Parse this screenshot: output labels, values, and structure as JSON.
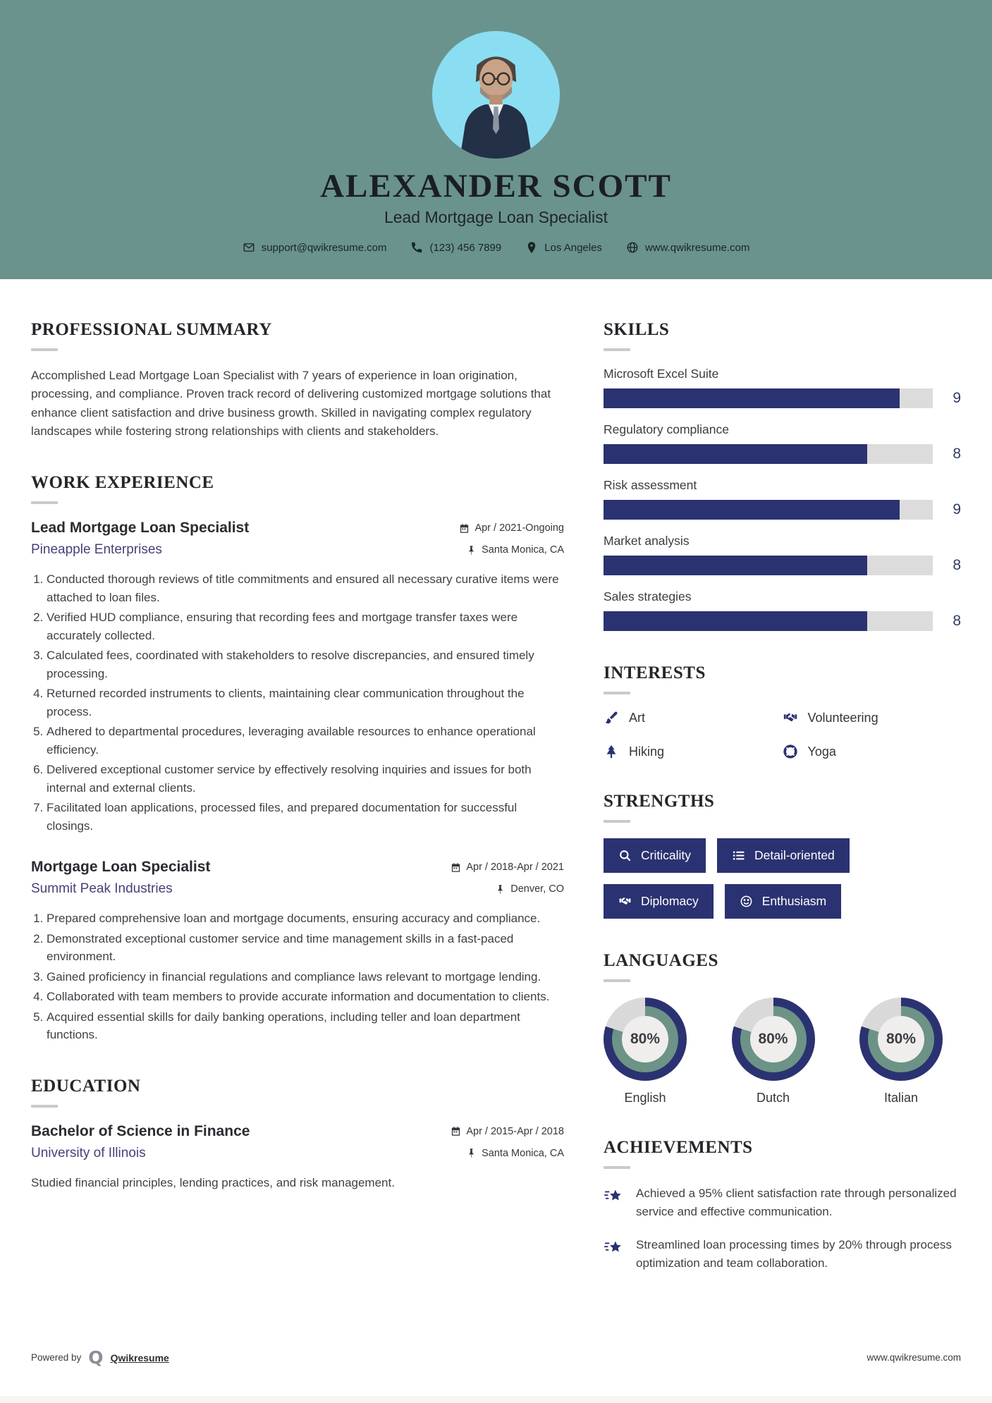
{
  "header": {
    "name": "ALEXANDER SCOTT",
    "title": "Lead Mortgage Loan Specialist",
    "contact": {
      "email": "support@qwikresume.com",
      "phone": "(123) 456 7899",
      "location": "Los Angeles",
      "website": "www.qwikresume.com"
    }
  },
  "sections": {
    "summary": {
      "heading": "PROFESSIONAL SUMMARY",
      "text": "Accomplished Lead Mortgage Loan Specialist with 7 years of experience in loan origination, processing, and compliance. Proven track record of delivering customized mortgage solutions that enhance client satisfaction and drive business growth. Skilled in navigating complex regulatory landscapes while fostering strong relationships with clients and stakeholders."
    },
    "experience": {
      "heading": "WORK EXPERIENCE",
      "jobs": [
        {
          "title": "Lead Mortgage Loan Specialist",
          "company": "Pineapple Enterprises",
          "dates": "Apr / 2021-Ongoing",
          "location": "Santa Monica, CA",
          "bullets": [
            "Conducted thorough reviews of title commitments and ensured all necessary curative items were attached to loan files.",
            "Verified HUD compliance, ensuring that recording fees and mortgage transfer taxes were accurately collected.",
            "Calculated fees, coordinated with stakeholders to resolve discrepancies, and ensured timely processing.",
            "Returned recorded instruments to clients, maintaining clear communication throughout the process.",
            "Adhered to departmental procedures, leveraging available resources to enhance operational efficiency.",
            "Delivered exceptional customer service by effectively resolving inquiries and issues for both internal and external clients.",
            "Facilitated loan applications, processed files, and prepared documentation for successful closings."
          ]
        },
        {
          "title": "Mortgage Loan Specialist",
          "company": "Summit Peak Industries",
          "dates": "Apr / 2018-Apr / 2021",
          "location": "Denver, CO",
          "bullets": [
            "Prepared comprehensive loan and mortgage documents, ensuring accuracy and compliance.",
            "Demonstrated exceptional customer service and time management skills in a fast-paced environment.",
            "Gained proficiency in financial regulations and compliance laws relevant to mortgage lending.",
            "Collaborated with team members to provide accurate information and documentation to clients.",
            "Acquired essential skills for daily banking operations, including teller and loan department functions."
          ]
        }
      ]
    },
    "education": {
      "heading": "EDUCATION",
      "degree": "Bachelor of Science in Finance",
      "school": "University of Illinois",
      "dates": "Apr / 2015-Apr / 2018",
      "location": "Santa Monica, CA",
      "description": "Studied financial principles, lending practices, and risk management."
    },
    "skills": {
      "heading": "SKILLS",
      "max": 10,
      "items": [
        {
          "label": "Microsoft Excel Suite",
          "value": 9
        },
        {
          "label": "Regulatory compliance",
          "value": 8
        },
        {
          "label": "Risk assessment",
          "value": 9
        },
        {
          "label": "Market analysis",
          "value": 8
        },
        {
          "label": "Sales strategies",
          "value": 8
        }
      ]
    },
    "interests": {
      "heading": "INTERESTS",
      "items": [
        {
          "label": "Art",
          "icon": "paintbrush-icon"
        },
        {
          "label": "Volunteering",
          "icon": "handshake-icon"
        },
        {
          "label": "Hiking",
          "icon": "tree-icon"
        },
        {
          "label": "Yoga",
          "icon": "lifebuoy-icon"
        }
      ]
    },
    "strengths": {
      "heading": "STRENGTHS",
      "items": [
        {
          "label": "Criticality",
          "icon": "search-icon"
        },
        {
          "label": "Detail-oriented",
          "icon": "list-icon"
        },
        {
          "label": "Diplomacy",
          "icon": "handshake-icon"
        },
        {
          "label": "Enthusiasm",
          "icon": "smiley-icon"
        }
      ]
    },
    "languages": {
      "heading": "LANGUAGES",
      "items": [
        {
          "label": "English",
          "percent": 80
        },
        {
          "label": "Dutch",
          "percent": 80
        },
        {
          "label": "Italian",
          "percent": 80
        }
      ]
    },
    "achievements": {
      "heading": "ACHIEVEMENTS",
      "items": [
        {
          "text": "Achieved a 95% client satisfaction rate through personalized service and effective communication."
        },
        {
          "text": "Streamlined loan processing times by 20% through process optimization and team collaboration."
        }
      ]
    }
  },
  "footer": {
    "powered_by": "Powered by",
    "brand": "Qwikresume",
    "logo_letter": "Q",
    "website": "www.qwikresume.com"
  },
  "colors": {
    "header_teal": "#6a938d",
    "photo_blue": "#8bdef2",
    "accent_navy": "#2b3271",
    "donut_green": "#6d9386",
    "donut_track": "#d9d9d9",
    "bar_track": "#dcdcdc",
    "link_purple": "#45427a"
  }
}
